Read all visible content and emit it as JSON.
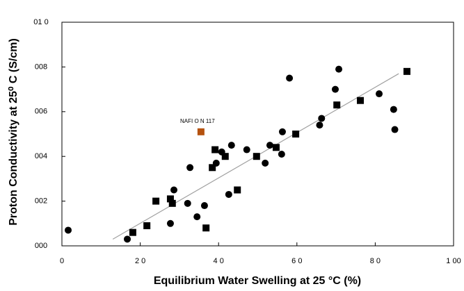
{
  "chart_data": {
    "type": "scatter",
    "x_label": "Equilibrium Water Swelling at 25    °C (%)",
    "y_label": "Proton Conductivity at 25⁰ C (S/cm)",
    "xlim": [
      0,
      100
    ],
    "ylim": [
      0,
      0.1
    ],
    "xticks": [
      {
        "value": 0,
        "label": "0"
      },
      {
        "value": 20,
        "label": "2 0"
      },
      {
        "value": 40,
        "label": "4 0"
      },
      {
        "value": 60,
        "label": "6 0"
      },
      {
        "value": 80,
        "label": "8 0"
      },
      {
        "value": 100,
        "label": "1 00"
      }
    ],
    "yticks": [
      {
        "value": 0,
        "label": "000"
      },
      {
        "value": 0.02,
        "label": "002"
      },
      {
        "value": 0.04,
        "label": "004"
      },
      {
        "value": 0.06,
        "label": "006"
      },
      {
        "value": 0.08,
        "label": "008"
      },
      {
        "value": 0.1,
        "label": "01 0"
      }
    ],
    "series": [
      {
        "marker": "circle",
        "color": "#000000",
        "x": [
          1.6,
          16.7,
          27.7,
          28.6,
          32.1,
          32.7,
          34.5,
          36.4,
          39.4,
          40.8,
          42.6,
          43.3,
          47.2,
          51.9,
          53.1,
          56.1,
          56.3,
          58.1,
          65.8,
          66.3,
          69.8,
          70.7,
          81,
          84.7,
          85
        ],
        "values": [
          0.007,
          0.003,
          0.01,
          0.025,
          0.019,
          0.035,
          0.013,
          0.018,
          0.037,
          0.042,
          0.023,
          0.045,
          0.043,
          0.037,
          0.045,
          0.041,
          0.051,
          0.075,
          0.054,
          0.057,
          0.07,
          0.079,
          0.068,
          0.061,
          0.052
        ]
      },
      {
        "marker": "square",
        "color": "#000000",
        "x": [
          18.1,
          21.7,
          24,
          27.7,
          28.2,
          36.8,
          38.4,
          39.1,
          41.7,
          44.8,
          49.7,
          54.7,
          59.7,
          70.2,
          76.2,
          88.1
        ],
        "values": [
          0.006,
          0.009,
          0.02,
          0.021,
          0.019,
          0.008,
          0.035,
          0.043,
          0.04,
          0.025,
          0.04,
          0.044,
          0.05,
          0.063,
          0.065,
          0.078
        ]
      },
      {
        "marker": "square",
        "color": "#b5520f",
        "x": [
          35.5
        ],
        "values": [
          0.051
        ]
      }
    ],
    "annotation": {
      "text": "NAFI O N 117",
      "color": "#b5520f"
    },
    "trendline": {
      "color": "#a0a0a0",
      "x": [
        13,
        86
      ],
      "values": [
        0.003,
        0.077
      ]
    }
  }
}
